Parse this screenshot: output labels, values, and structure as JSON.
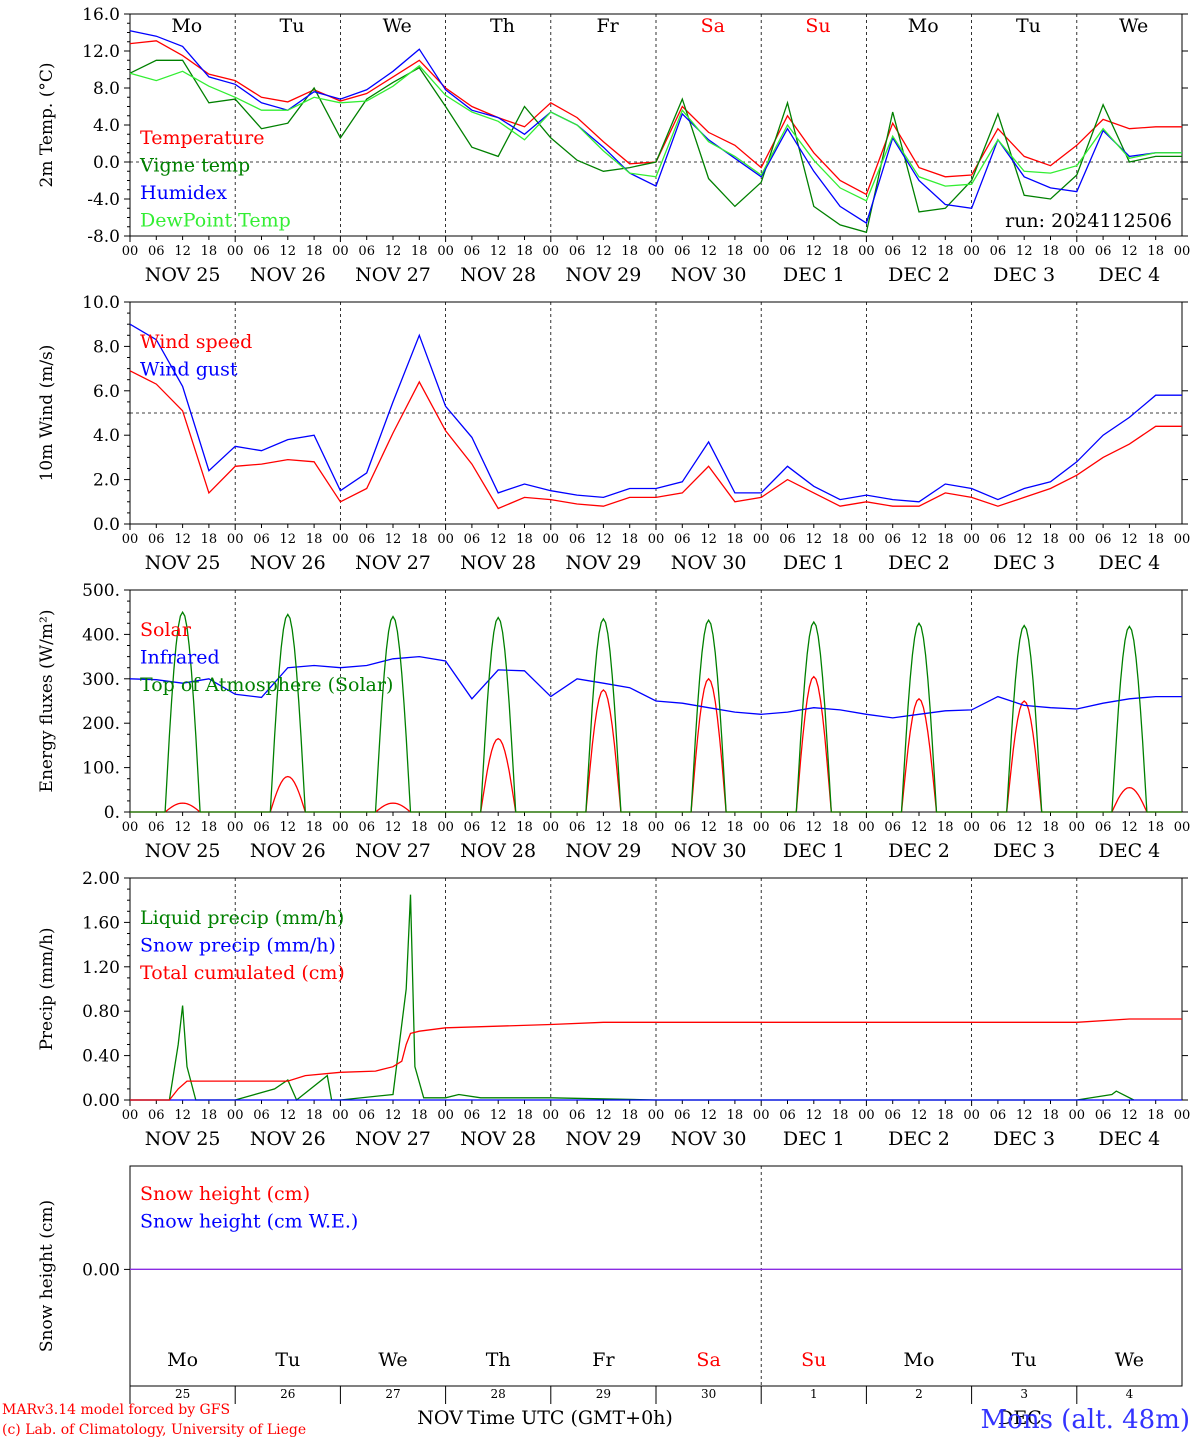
{
  "chart_data": [
    {
      "type": "line",
      "ylabel": "2m Temp. (°C)",
      "ylim": [
        -8,
        16
      ],
      "yticks": [
        "16.0",
        "12.0",
        "8.0",
        "4.0",
        "0.0",
        "-4.0",
        "-8.0"
      ],
      "dashed_reference": 0,
      "run_label": "run: 2024112506",
      "x_unit": "hours since NOV 25 00 UTC",
      "series": [
        {
          "name": "Temperature",
          "color": "#ff0000",
          "x": [
            0,
            6,
            12,
            18,
            24,
            30,
            36,
            42,
            48,
            54,
            60,
            66,
            72,
            78,
            84,
            90,
            96,
            102,
            108,
            114,
            120,
            126,
            132,
            138,
            144,
            150,
            156,
            162,
            168,
            174,
            180,
            186,
            192,
            198,
            204,
            210,
            216,
            222,
            228,
            234
          ],
          "values": [
            12.8,
            13.1,
            11.5,
            9.5,
            8.8,
            7.0,
            6.5,
            7.8,
            6.6,
            7.4,
            9.2,
            11.0,
            8.0,
            6.0,
            4.8,
            3.8,
            6.4,
            4.8,
            2.2,
            -0.2,
            0.0,
            6.0,
            3.2,
            1.8,
            -0.6,
            5.0,
            1.0,
            -2.0,
            -3.5,
            4.2,
            -0.6,
            -1.6,
            -1.4,
            3.6,
            0.6,
            -0.4,
            1.8,
            4.6,
            3.6,
            3.8
          ]
        },
        {
          "name": "Vigne temp",
          "color": "#008000",
          "x": [
            0,
            6,
            12,
            18,
            24,
            30,
            36,
            42,
            48,
            54,
            60,
            66,
            72,
            78,
            84,
            90,
            96,
            102,
            108,
            114,
            120,
            126,
            132,
            138,
            144,
            150,
            156,
            162,
            168,
            174,
            180,
            186,
            192,
            198,
            204,
            210,
            216,
            222,
            228,
            234
          ],
          "values": [
            9.6,
            11.0,
            11.0,
            6.4,
            6.8,
            3.6,
            4.2,
            8.0,
            2.6,
            6.8,
            8.6,
            10.2,
            6.0,
            1.6,
            0.6,
            6.0,
            2.6,
            0.2,
            -1.0,
            -0.6,
            0.0,
            6.8,
            -1.8,
            -4.8,
            -2.2,
            6.4,
            -4.8,
            -6.8,
            -7.6,
            5.4,
            -5.4,
            -5.0,
            -2.0,
            5.2,
            -3.6,
            -4.0,
            -1.4,
            6.2,
            0.0,
            0.6
          ]
        },
        {
          "name": "Humidex",
          "color": "#0000ff",
          "x": [
            0,
            6,
            12,
            18,
            24,
            30,
            36,
            42,
            48,
            54,
            60,
            66,
            72,
            78,
            84,
            90,
            96,
            102,
            108,
            114,
            120,
            126,
            132,
            138,
            144,
            150,
            156,
            162,
            168,
            174,
            180,
            186,
            192,
            198,
            204,
            210,
            216,
            222,
            228,
            234
          ],
          "values": [
            14.2,
            13.6,
            12.5,
            9.2,
            8.4,
            6.4,
            5.6,
            7.6,
            6.8,
            7.8,
            9.8,
            12.2,
            7.8,
            5.6,
            4.8,
            3.0,
            5.4,
            4.0,
            1.6,
            -1.2,
            -2.6,
            5.2,
            2.4,
            0.4,
            -1.6,
            3.6,
            -1.0,
            -4.8,
            -6.6,
            2.6,
            -2.0,
            -4.6,
            -5.0,
            2.4,
            -1.6,
            -2.8,
            -3.2,
            3.4,
            0.6,
            1.0
          ]
        },
        {
          "name": "DewPoint Temp",
          "color": "#33ee33",
          "x": [
            0,
            6,
            12,
            18,
            24,
            30,
            36,
            42,
            48,
            54,
            60,
            66,
            72,
            78,
            84,
            90,
            96,
            102,
            108,
            114,
            120,
            126,
            132,
            138,
            144,
            150,
            156,
            162,
            168,
            174,
            180,
            186,
            192,
            198,
            204,
            210,
            216,
            222,
            228,
            234
          ],
          "values": [
            9.6,
            8.8,
            9.8,
            8.2,
            7.0,
            5.6,
            5.6,
            7.0,
            6.4,
            6.6,
            8.2,
            10.4,
            7.2,
            5.4,
            4.4,
            2.4,
            5.4,
            4.0,
            1.2,
            -1.2,
            -1.6,
            5.6,
            2.2,
            0.6,
            -1.4,
            4.0,
            0.2,
            -2.8,
            -4.2,
            2.8,
            -1.6,
            -2.6,
            -2.4,
            2.4,
            -1.0,
            -1.2,
            -0.4,
            3.6,
            0.4,
            1.0
          ]
        }
      ],
      "legend": [
        "Temperature",
        "Vigne temp",
        "Humidex",
        "DewPoint Temp"
      ],
      "legend_placement": "left"
    },
    {
      "type": "line",
      "ylabel": "10m Wind (m/s)",
      "ylim": [
        0,
        10
      ],
      "yticks": [
        "10.0",
        "8.0",
        "6.0",
        "4.0",
        "2.0",
        "0.0"
      ],
      "dashed_reference": 5,
      "x_unit": "hours since NOV 25 00 UTC",
      "series": [
        {
          "name": "Wind speed",
          "color": "#ff0000",
          "x": [
            0,
            6,
            12,
            18,
            24,
            30,
            36,
            42,
            48,
            54,
            60,
            66,
            72,
            78,
            84,
            90,
            96,
            102,
            108,
            114,
            120,
            126,
            132,
            138,
            144,
            150,
            156,
            162,
            168,
            174,
            180,
            186,
            192,
            198,
            204,
            210,
            216,
            222,
            228,
            234
          ],
          "values": [
            6.9,
            6.3,
            5.1,
            1.4,
            2.6,
            2.7,
            2.9,
            2.8,
            1.0,
            1.6,
            4.1,
            6.4,
            4.2,
            2.7,
            0.7,
            1.2,
            1.1,
            0.9,
            0.8,
            1.2,
            1.2,
            1.4,
            2.6,
            1.0,
            1.2,
            2.0,
            1.4,
            0.8,
            1.0,
            0.8,
            0.8,
            1.4,
            1.2,
            0.8,
            1.2,
            1.6,
            2.2,
            3.0,
            3.6,
            4.4
          ]
        },
        {
          "name": "Wind gust",
          "color": "#0000ff",
          "x": [
            0,
            6,
            12,
            18,
            24,
            30,
            36,
            42,
            48,
            54,
            60,
            66,
            72,
            78,
            84,
            90,
            96,
            102,
            108,
            114,
            120,
            126,
            132,
            138,
            144,
            150,
            156,
            162,
            168,
            174,
            180,
            186,
            192,
            198,
            204,
            210,
            216,
            222,
            228,
            234
          ],
          "values": [
            9.0,
            8.3,
            6.2,
            2.4,
            3.5,
            3.3,
            3.8,
            4.0,
            1.5,
            2.3,
            5.5,
            8.5,
            5.3,
            3.9,
            1.4,
            1.8,
            1.5,
            1.3,
            1.2,
            1.6,
            1.6,
            1.9,
            3.7,
            1.4,
            1.4,
            2.6,
            1.7,
            1.1,
            1.3,
            1.1,
            1.0,
            1.8,
            1.6,
            1.1,
            1.6,
            1.9,
            2.8,
            4.0,
            4.8,
            5.8
          ]
        }
      ],
      "legend": [
        "Wind speed",
        "Wind gust"
      ],
      "legend_placement": "top-left"
    },
    {
      "type": "line",
      "ylabel": "Energy fluxes (W/m²)",
      "ylim": [
        0,
        500
      ],
      "yticks": [
        "500.",
        "400.",
        "300.",
        "200.",
        "100.",
        "0."
      ],
      "x_unit": "hours since NOV 25 00 UTC",
      "series": [
        {
          "name": "Solar",
          "color": "#ff0000",
          "daily_peak": [
            20,
            80,
            20,
            165,
            275,
            300,
            305,
            255,
            250,
            55
          ],
          "day_start_hours": [
            0,
            24,
            48,
            72,
            96,
            120,
            144,
            168,
            192,
            216
          ]
        },
        {
          "name": "Infrared",
          "color": "#0000ff",
          "x": [
            0,
            6,
            12,
            18,
            24,
            30,
            36,
            42,
            48,
            54,
            60,
            66,
            72,
            78,
            84,
            90,
            96,
            102,
            108,
            114,
            120,
            126,
            132,
            138,
            144,
            150,
            156,
            162,
            168,
            174,
            180,
            186,
            192,
            198,
            204,
            210,
            216,
            222,
            228,
            234
          ],
          "values": [
            300,
            298,
            290,
            300,
            265,
            258,
            325,
            330,
            325,
            330,
            345,
            350,
            340,
            255,
            320,
            318,
            260,
            300,
            290,
            280,
            250,
            245,
            235,
            225,
            220,
            225,
            235,
            230,
            220,
            212,
            220,
            228,
            230,
            260,
            240,
            235,
            232,
            245,
            255,
            260
          ]
        },
        {
          "name": "Top of Atmosphere (Solar)",
          "color": "#008000",
          "daily_peak": [
            450,
            445,
            440,
            438,
            435,
            432,
            428,
            425,
            420,
            418
          ],
          "day_start_hours": [
            0,
            24,
            48,
            72,
            96,
            120,
            144,
            168,
            192,
            216
          ]
        }
      ],
      "legend": [
        "Solar",
        "Infrared",
        "Top of Atmosphere (Solar)"
      ],
      "legend_placement": "top-left"
    },
    {
      "type": "line",
      "ylabel": "Precip (mm/h)",
      "ylim": [
        0,
        2
      ],
      "yticks": [
        "2.00",
        "1.60",
        "1.20",
        "0.80",
        "0.40",
        "0.00"
      ],
      "x_unit": "hours since NOV 25 00 UTC",
      "series": [
        {
          "name": "Liquid precip (mm/h)",
          "color": "#008000",
          "x": [
            0,
            9,
            11,
            12,
            13,
            15,
            24,
            33,
            36,
            38,
            45,
            46,
            48,
            60,
            63,
            64,
            65,
            67,
            72,
            75,
            80,
            96,
            120,
            216,
            224,
            225,
            226,
            229
          ],
          "values": [
            0,
            0,
            0.5,
            0.85,
            0.3,
            0,
            0,
            0.1,
            0.18,
            0,
            0.22,
            0,
            0,
            0.05,
            1.0,
            1.85,
            0.3,
            0.02,
            0.02,
            0.05,
            0.02,
            0.02,
            0,
            0,
            0.05,
            0.08,
            0.06,
            0
          ]
        },
        {
          "name": "Snow precip (mm/h)",
          "color": "#0000ff",
          "x": [
            0,
            240
          ],
          "values": [
            0,
            0
          ]
        },
        {
          "name": "Total cumulated (cm)",
          "color": "#ff0000",
          "x": [
            0,
            9,
            11,
            13,
            36,
            40,
            48,
            56,
            60,
            62,
            63,
            64,
            66,
            72,
            96,
            108,
            216,
            228,
            240
          ],
          "values": [
            0,
            0,
            0.1,
            0.17,
            0.17,
            0.22,
            0.25,
            0.26,
            0.3,
            0.35,
            0.5,
            0.6,
            0.62,
            0.65,
            0.68,
            0.7,
            0.7,
            0.73,
            0.73
          ]
        }
      ],
      "legend": [
        "Liquid precip (mm/h)",
        "Snow precip (mm/h)",
        "Total cumulated (cm)"
      ],
      "legend_placement": "top-left"
    },
    {
      "type": "line",
      "ylabel": "Snow height (cm)",
      "yticks": [
        "0.00"
      ],
      "series": [
        {
          "name": "Snow height (cm)",
          "color": "#ff0000",
          "x": [
            0,
            240
          ],
          "values": [
            0,
            0
          ]
        },
        {
          "name": "Snow height (cm W.E.)",
          "color": "#0000ff",
          "x": [
            0,
            240
          ],
          "values": [
            0,
            0
          ]
        }
      ],
      "legend": [
        "Snow height (cm)",
        "Snow height (cm W.E.)"
      ],
      "legend_placement": "top-left"
    }
  ],
  "x_axis": {
    "hour_ticks": [
      "00",
      "06",
      "12",
      "18"
    ],
    "final_tick": "00",
    "date_labels": [
      "NOV 25",
      "NOV 26",
      "NOV 27",
      "NOV 28",
      "NOV 29",
      "NOV 30",
      "DEC  1",
      "DEC  2",
      "DEC  3",
      "DEC  4"
    ],
    "weekdays": [
      "Mo",
      "Tu",
      "We",
      "Th",
      "Fr",
      "Sa",
      "Su",
      "Mo",
      "Tu",
      "We"
    ],
    "weekend_color": "#ff0000",
    "weekday_color": "#000000",
    "weekend_flags": [
      false,
      false,
      false,
      false,
      false,
      true,
      true,
      false,
      false,
      false
    ],
    "day_numbers": [
      "25",
      "26",
      "27",
      "28",
      "29",
      "30",
      "1",
      "2",
      "3",
      "4"
    ],
    "month_labels": [
      "NOV",
      "DEC"
    ],
    "title": "Time UTC (GMT+0h)"
  },
  "footer": {
    "model_line": "MARv3.14 model forced by GFS",
    "copyright_line": "(c) Lab. of Climatology, University of Liege",
    "location": "Mons (alt. 48m)"
  }
}
